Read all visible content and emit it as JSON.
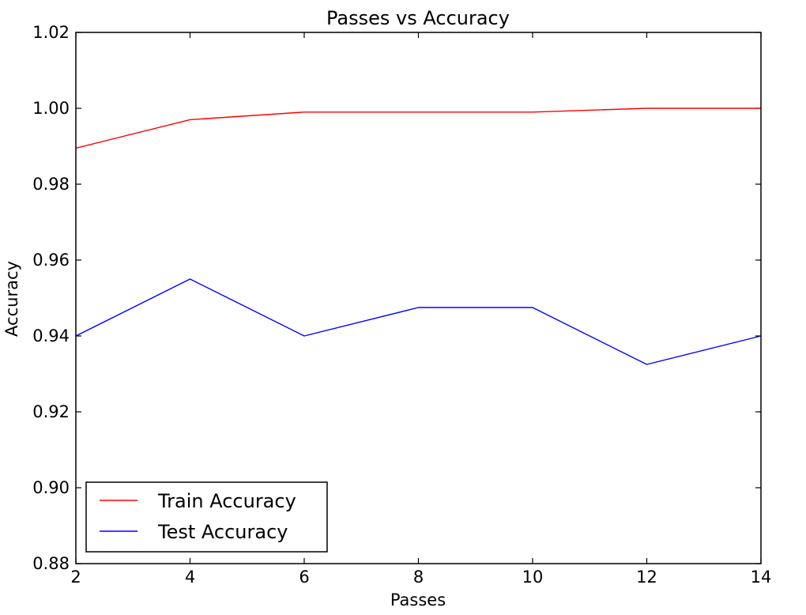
{
  "chart_data": {
    "type": "line",
    "title": "Passes vs Accuracy",
    "xlabel": "Passes",
    "ylabel": "Accuracy",
    "x": [
      2,
      4,
      6,
      8,
      10,
      12,
      14
    ],
    "xlim": [
      2,
      14
    ],
    "ylim": [
      0.88,
      1.02
    ],
    "xticks": [
      2,
      4,
      6,
      8,
      10,
      12,
      14
    ],
    "xtick_labels": [
      "2",
      "4",
      "6",
      "8",
      "10",
      "12",
      "14"
    ],
    "yticks": [
      0.88,
      0.9,
      0.92,
      0.94,
      0.96,
      0.98,
      1.0,
      1.02
    ],
    "ytick_labels": [
      "0.88",
      "0.90",
      "0.92",
      "0.94",
      "0.96",
      "0.98",
      "1.00",
      "1.02"
    ],
    "grid": false,
    "legend_position": "lower-left",
    "series": [
      {
        "name": "Train Accuracy",
        "color": "#ff0000",
        "values": [
          0.9895,
          0.997,
          0.999,
          0.999,
          0.999,
          1.0,
          1.0
        ]
      },
      {
        "name": "Test Accuracy",
        "color": "#0000ff",
        "values": [
          0.94,
          0.955,
          0.94,
          0.9475,
          0.9475,
          0.9325,
          0.94
        ]
      }
    ]
  }
}
